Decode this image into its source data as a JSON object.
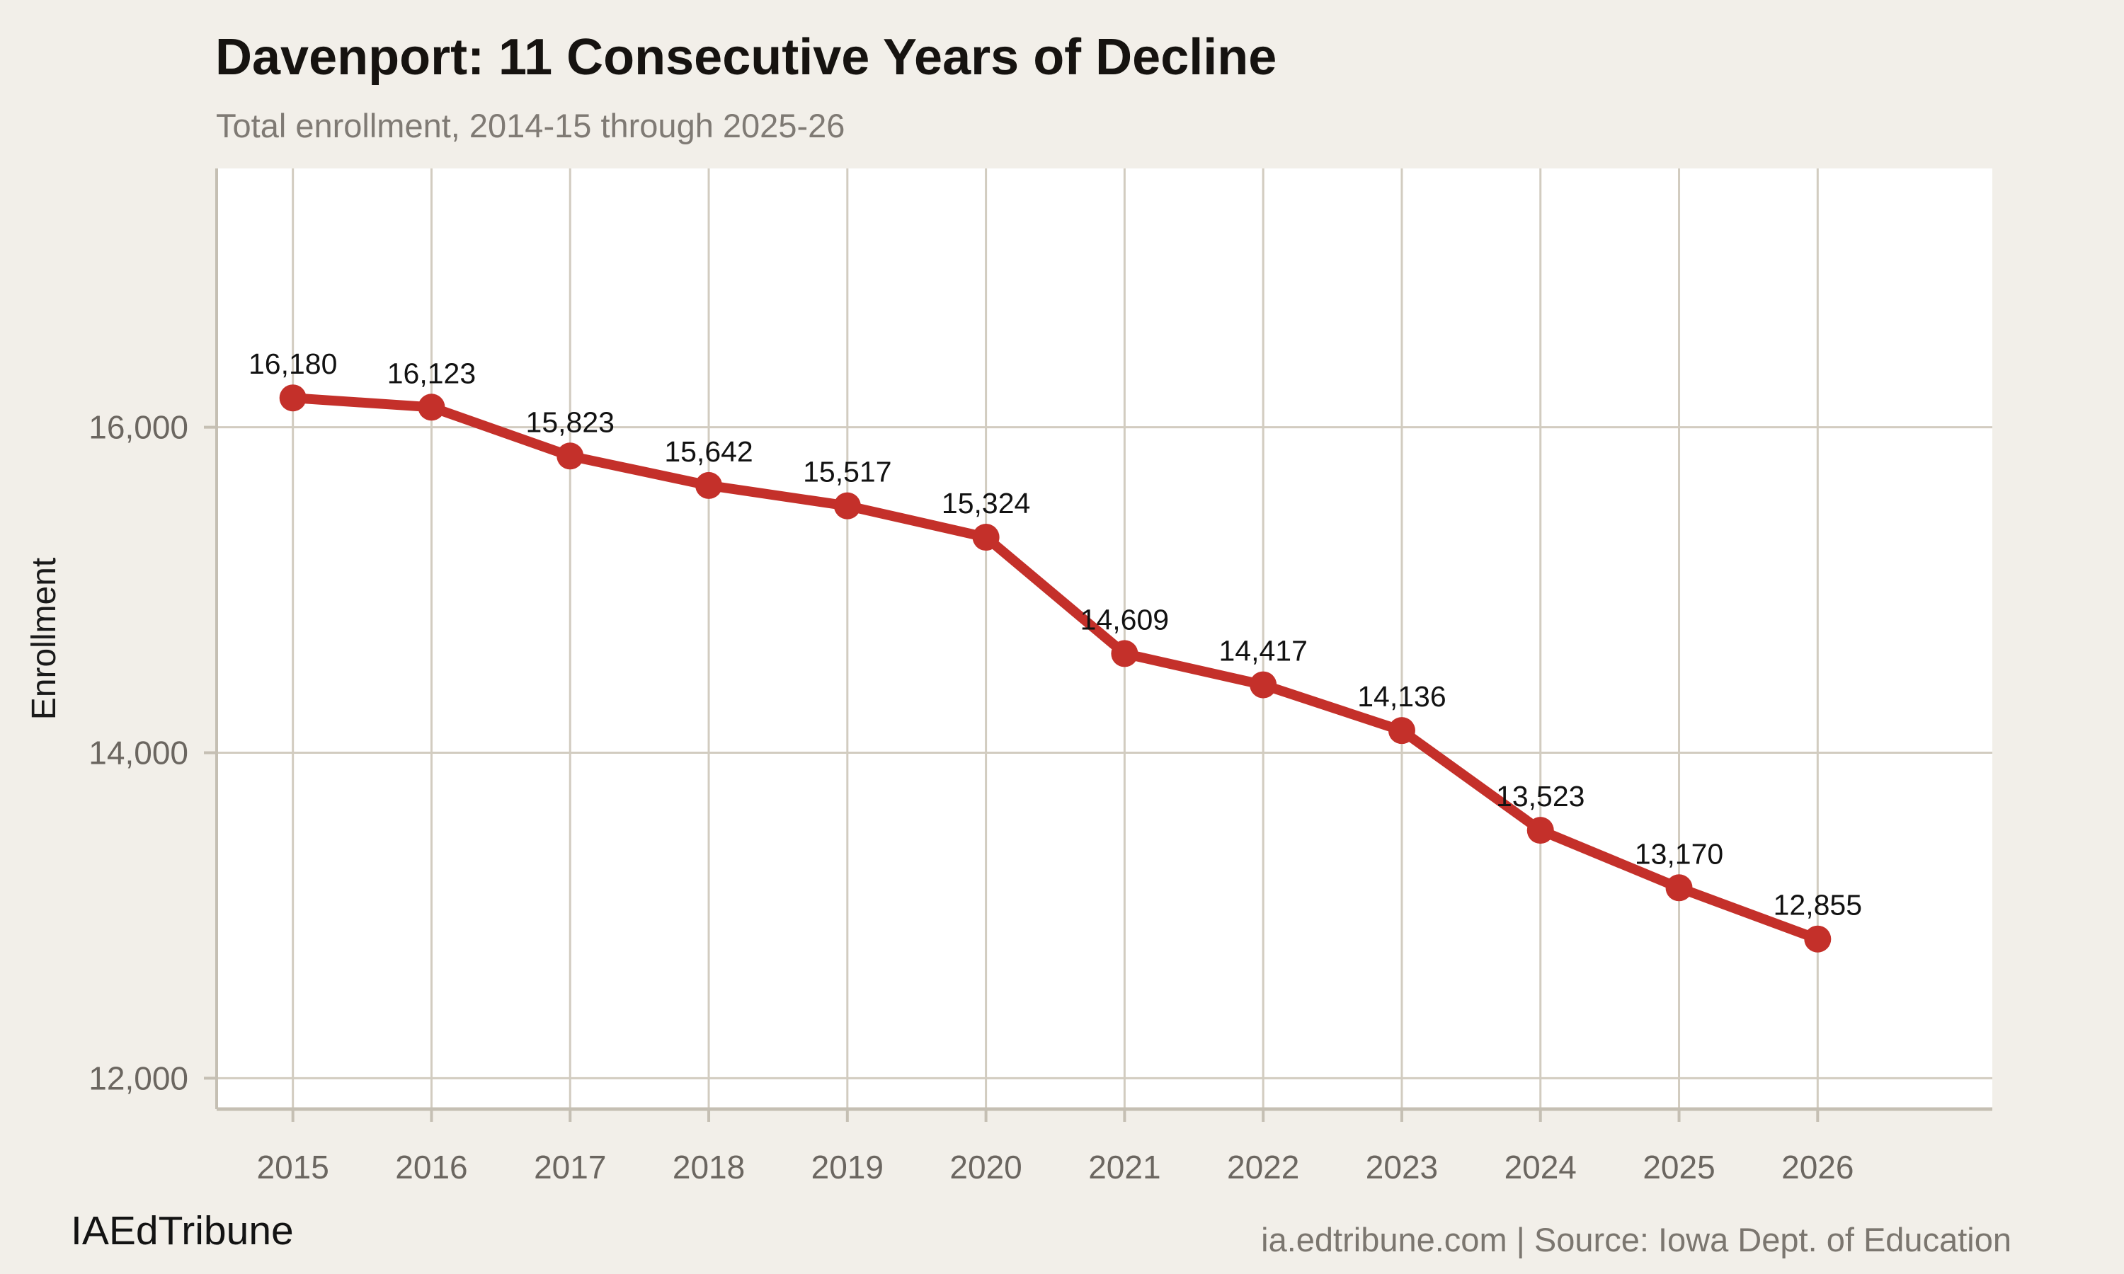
{
  "header": {
    "title": "Davenport: 11 Consecutive Years of Decline",
    "subtitle": "Total enrollment, 2014-15 through 2025-26"
  },
  "footer": {
    "brand": "IAEdTribune",
    "source": "ia.edtribune.com | Source: Iowa Dept. of Education"
  },
  "colors": {
    "background": "#f2efe9",
    "plot_background": "#ffffff",
    "grid": "#d2ccc0",
    "axis": "#c5bfb3",
    "tick_label": "#6b6660",
    "axis_title": "#1a1a1a",
    "line": "#c4302a",
    "data_label": "#121212"
  },
  "chart_data": {
    "type": "line",
    "x": [
      2015,
      2016,
      2017,
      2018,
      2019,
      2020,
      2021,
      2022,
      2023,
      2024,
      2025,
      2026
    ],
    "values": [
      16180,
      16123,
      15823,
      15642,
      15517,
      15324,
      14609,
      14417,
      14136,
      13523,
      13170,
      12855
    ],
    "point_labels": [
      "16,180",
      "16,123",
      "15,823",
      "15,642",
      "15,517",
      "15,324",
      "14,609",
      "14,417",
      "14,136",
      "13,523",
      "13,170",
      "12,855"
    ],
    "title": "Davenport: 11 Consecutive Years of Decline",
    "subtitle": "Total enrollment, 2014-15 through 2025-26",
    "xlabel": "",
    "ylabel": "Enrollment",
    "xtick_labels": [
      "2015",
      "2016",
      "2017",
      "2018",
      "2019",
      "2020",
      "2021",
      "2022",
      "2023",
      "2024",
      "2025",
      "2026"
    ],
    "yticks": [
      12000,
      14000,
      16000
    ],
    "ytick_labels": [
      "12,000",
      "14,000",
      "16,000"
    ],
    "xlim": [
      2014.45,
      2027.26
    ],
    "ylim": [
      11810,
      17590
    ],
    "grid": true,
    "legend": false,
    "marker": "circle"
  }
}
